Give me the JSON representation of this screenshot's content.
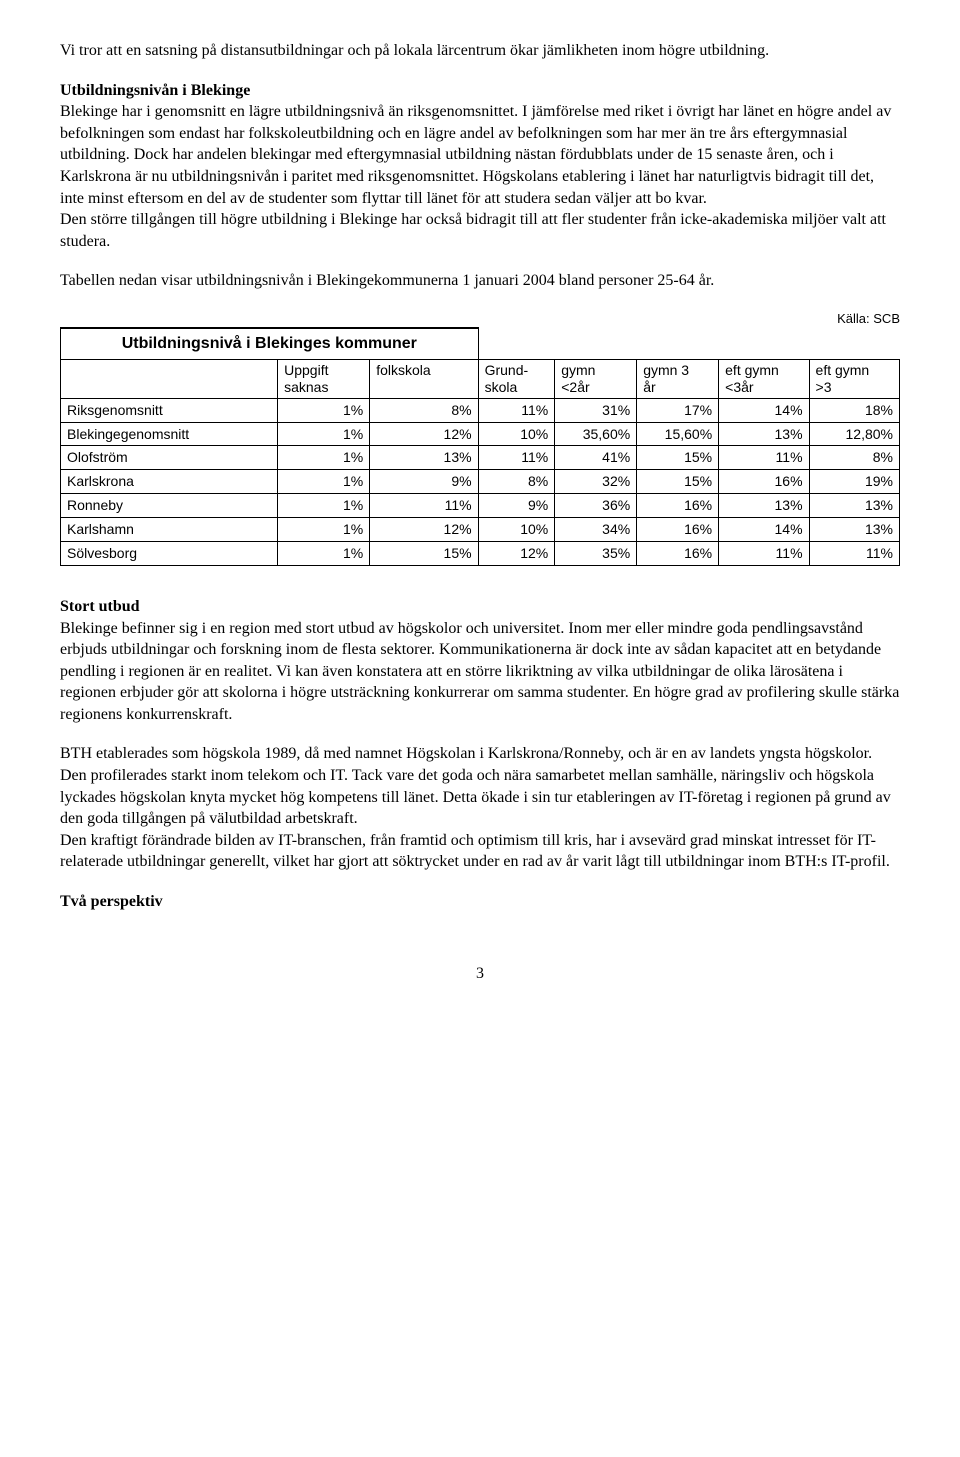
{
  "para1": "Vi tror att en satsning på distansutbildningar och på lokala lärcentrum ökar jämlikheten inom högre utbildning.",
  "heading1": "Utbildningsnivån i Blekinge",
  "para2": "Blekinge har i genomsnitt en lägre utbildningsnivå än riksgenomsnittet. I jämförelse med riket i övrigt har länet en högre andel av befolkningen som endast har folkskoleutbildning och en lägre andel av befolkningen som har mer än tre års eftergymnasial utbildning. Dock har andelen blekingar med eftergymnasial utbildning nästan fördubblats under de 15 senaste åren, och i Karlskrona är nu utbildningsnivån i paritet med riksgenomsnittet. Högskolans etablering i länet har naturligtvis bidragit till det, inte minst eftersom en del av de studenter som flyttar till länet för att studera sedan väljer att bo kvar.",
  "para3": "Den större tillgången till högre utbildning i Blekinge har också bidragit till att fler studenter från icke-akademiska miljöer valt att studera.",
  "para4": "Tabellen nedan visar utbildningsnivån i Blekingekommunerna 1 januari 2004 bland personer 25-64 år.",
  "source": "Källa: SCB",
  "table": {
    "title": "Utbildningsnivå i Blekinges kommuner",
    "headers": [
      "",
      "Uppgift saknas",
      "folkskola",
      "Grund-skola",
      "gymn <2år",
      "gymn 3 år",
      "eft gymn <3år",
      "eft gymn >3"
    ],
    "headers_line1": [
      "",
      "Uppgift",
      "folkskola",
      "Grund-",
      "gymn",
      "gymn 3",
      "eft gymn",
      "eft gymn"
    ],
    "headers_line2": [
      "",
      "saknas",
      "",
      "skola",
      "<2år",
      "år",
      "<3år",
      ">3"
    ],
    "rows": [
      {
        "label": "Riksgenomsnitt",
        "cells": [
          "1%",
          "8%",
          "11%",
          "31%",
          "17%",
          "14%",
          "18%"
        ]
      },
      {
        "label": "Blekingegenomsnitt",
        "cells": [
          "1%",
          "12%",
          "10%",
          "35,60%",
          "15,60%",
          "13%",
          "12,80%"
        ]
      },
      {
        "label": "Olofström",
        "cells": [
          "1%",
          "13%",
          "11%",
          "41%",
          "15%",
          "11%",
          "8%"
        ]
      },
      {
        "label": "Karlskrona",
        "cells": [
          "1%",
          "9%",
          "8%",
          "32%",
          "15%",
          "16%",
          "19%"
        ]
      },
      {
        "label": "Ronneby",
        "cells": [
          "1%",
          "11%",
          "9%",
          "36%",
          "16%",
          "13%",
          "13%"
        ]
      },
      {
        "label": "Karlshamn",
        "cells": [
          "1%",
          "12%",
          "10%",
          "34%",
          "16%",
          "14%",
          "13%"
        ]
      },
      {
        "label": "Sölvesborg",
        "cells": [
          "1%",
          "15%",
          "12%",
          "35%",
          "16%",
          "11%",
          "11%"
        ]
      }
    ]
  },
  "heading2": "Stort utbud",
  "para5": "Blekinge befinner sig i en region med stort utbud av högskolor och universitet. Inom mer eller mindre goda pendlingsavstånd erbjuds utbildningar och forskning inom de flesta sektorer. Kommunikationerna är dock inte av sådan kapacitet att en betydande pendling i regionen är en realitet. Vi kan även konstatera att en större likriktning av vilka utbildningar de olika lärosätena i regionen erbjuder gör att skolorna i högre utsträckning konkurrerar om samma studenter. En högre grad av profilering skulle stärka regionens konkurrenskraft.",
  "para6": "BTH etablerades som högskola 1989, då med namnet Högskolan i Karlskrona/Ronneby, och är en av landets yngsta högskolor. Den profilerades starkt inom telekom och IT. Tack vare det goda och nära samarbetet mellan samhälle, näringsliv och högskola lyckades högskolan knyta mycket hög kompetens till länet. Detta ökade i sin tur etableringen av IT-företag i regionen på grund av den goda tillgången på välutbildad arbetskraft.",
  "para7": "Den kraftigt förändrade bilden av IT-branschen, från framtid och optimism till kris, har i avsevärd grad minskat intresset för IT-relaterade utbildningar generellt, vilket har gjort att söktrycket under en rad av år varit lågt till utbildningar inom BTH:s IT-profil.",
  "heading3": "Två perspektiv",
  "pageNumber": "3"
}
